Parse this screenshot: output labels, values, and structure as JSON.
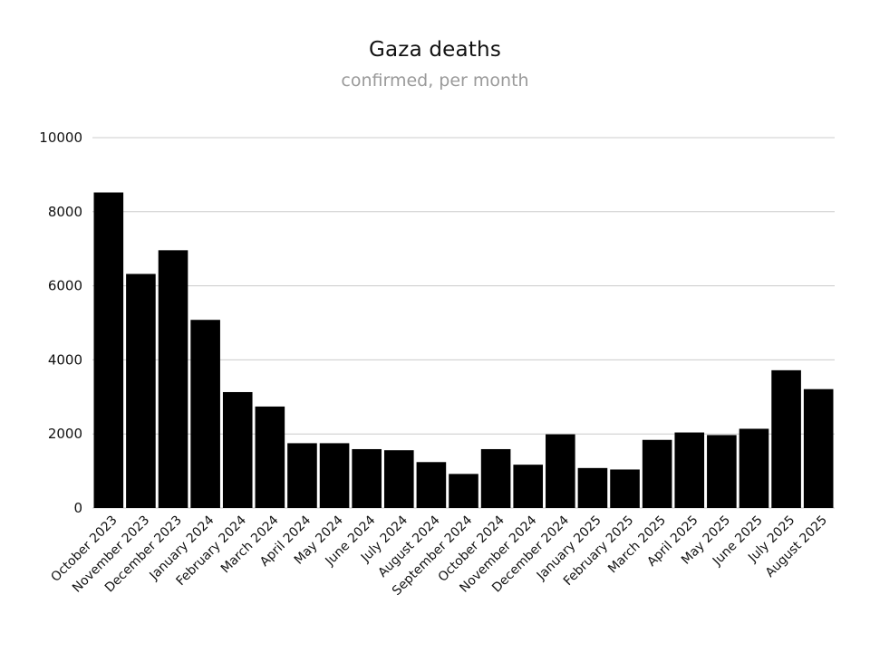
{
  "chart_data": {
    "type": "bar",
    "title": "Gaza deaths",
    "subtitle": "confirmed, per month",
    "xlabel": "",
    "ylabel": "",
    "categories": [
      "October 2023",
      "November 2023",
      "December 2023",
      "January 2024",
      "February 2024",
      "March 2024",
      "April 2024",
      "May 2024",
      "June 2024",
      "July 2024",
      "August 2024",
      "September 2024",
      "October 2024",
      "November 2024",
      "December 2024",
      "January 2025",
      "February 2025",
      "March 2025",
      "April 2025",
      "May 2025",
      "June 2025",
      "July 2025",
      "August 2025"
    ],
    "values": [
      8520,
      6320,
      6960,
      5080,
      3130,
      2740,
      1750,
      1750,
      1590,
      1560,
      1240,
      920,
      1590,
      1170,
      1990,
      1080,
      1040,
      1840,
      2040,
      1970,
      2140,
      3720,
      3210
    ],
    "ylim": [
      0,
      10000
    ],
    "yticks": [
      0,
      2000,
      4000,
      6000,
      8000,
      10000
    ],
    "grid": true,
    "legend": "none",
    "colors": {
      "bar": "#000000",
      "grid": "#cccccc",
      "title": "#111111",
      "subtitle": "#9a9a9a"
    }
  }
}
